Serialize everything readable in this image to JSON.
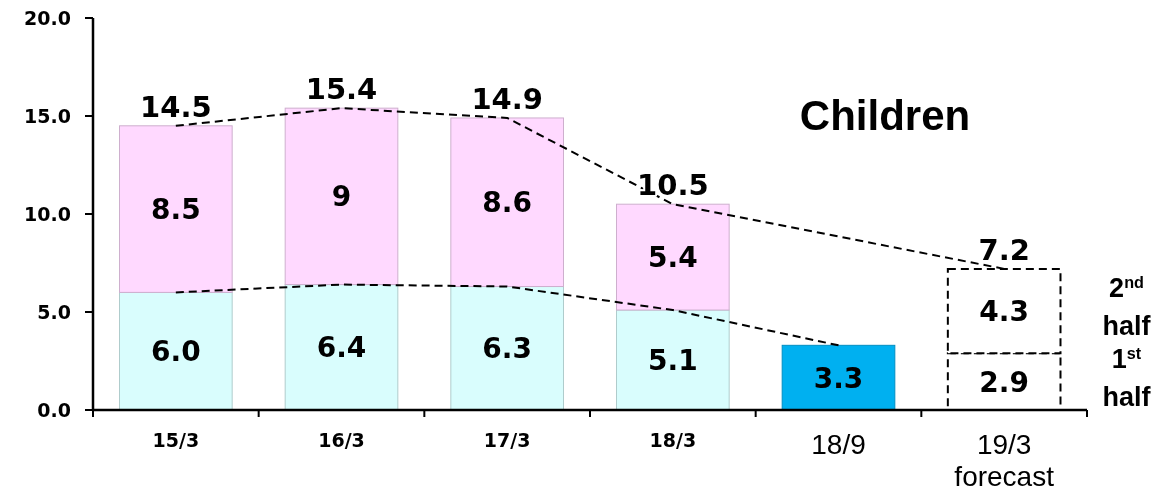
{
  "chart_data": {
    "type": "bar",
    "title": "Children",
    "stacked": true,
    "categories": [
      "15/3",
      "16/3",
      "17/3",
      "18/3",
      "18/9",
      "19/3 forecast"
    ],
    "ylim": [
      0,
      20
    ],
    "yticks": [
      {
        "value": 0,
        "label": "0.0"
      },
      {
        "value": 5,
        "label": "5.0"
      },
      {
        "value": 10,
        "label": "10.0"
      },
      {
        "value": 15,
        "label": "15.0"
      },
      {
        "value": 20,
        "label": "20.0"
      }
    ],
    "series": [
      {
        "color": "#d9fdfd",
        "colors": [
          null,
          null,
          null,
          null,
          "#00b0f0",
          null
        ],
        "values": [
          6.0,
          6.4,
          6.3,
          5.1,
          3.3,
          null
        ],
        "value_labels": [
          "6.0",
          "6.4",
          "6.3",
          "5.1",
          "3.3",
          null
        ]
      },
      {
        "color": "#ffd9ff",
        "values": [
          8.5,
          9,
          8.6,
          5.4,
          null,
          null
        ],
        "value_labels": [
          "8.5",
          "9",
          "8.6",
          "5.4",
          null,
          null
        ]
      },
      {
        "name": "1$^{st}$ half",
        "color": "#ffffff",
        "line_style": "dashed",
        "values": [
          null,
          null,
          null,
          null,
          null,
          2.9
        ],
        "value_labels": [
          null,
          null,
          null,
          null,
          null,
          "2.9"
        ]
      },
      {
        "name": "2$^{nd}$ half",
        "color": "#ffffff",
        "line_style": "dashed",
        "values": [
          null,
          null,
          null,
          null,
          null,
          4.3
        ],
        "value_labels": [
          null,
          null,
          null,
          null,
          null,
          "4.3"
        ]
      },
      {
        "type": "line",
        "color": "#000000",
        "line_style": "dashed",
        "x": [
          "15/3",
          "16/3",
          "17/3",
          "18/3",
          "18/9"
        ],
        "values": [
          6.0,
          6.4,
          6.3,
          5.1,
          3.3
        ]
      },
      {
        "type": "line",
        "color": "#000000",
        "line_style": "dashed",
        "x": [
          "15/3",
          "16/3",
          "17/3",
          "18/3",
          "19/3 forecast"
        ],
        "values": [
          14.5,
          15.4,
          14.9,
          10.5,
          7.2
        ]
      }
    ],
    "totals": [
      "14.5",
      "15.4",
      "14.9",
      "10.5",
      null,
      "7.2"
    ]
  }
}
